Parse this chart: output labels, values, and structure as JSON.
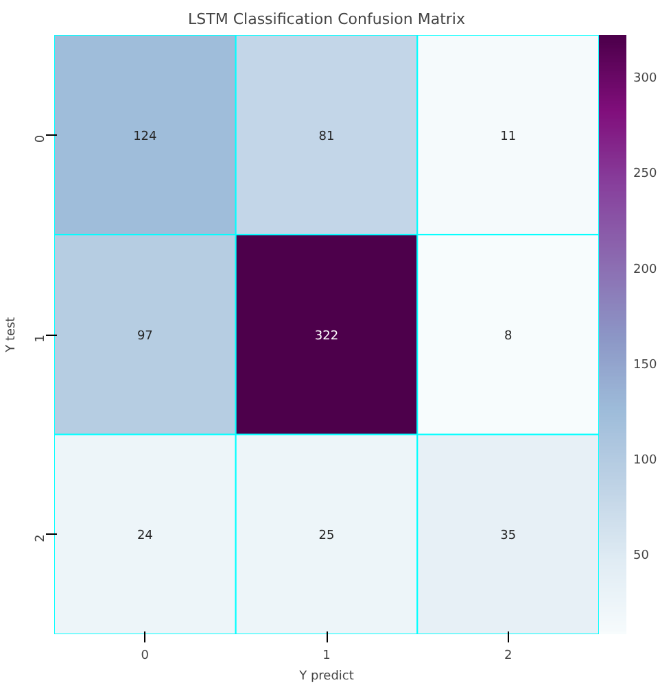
{
  "chart_data": {
    "type": "heatmap",
    "title": "LSTM Classification Confusion Matrix",
    "xlabel": "Y predict",
    "ylabel": "Y test",
    "categories": [
      "0",
      "1",
      "2"
    ],
    "y_categories": [
      "0",
      "1",
      "2"
    ],
    "cells": [
      [
        124,
        81,
        11
      ],
      [
        97,
        322,
        8
      ],
      [
        24,
        25,
        35
      ]
    ],
    "data_labels": true,
    "clim": [
      8,
      322
    ],
    "cticks": [
      50,
      100,
      150,
      200,
      250,
      300
    ]
  }
}
